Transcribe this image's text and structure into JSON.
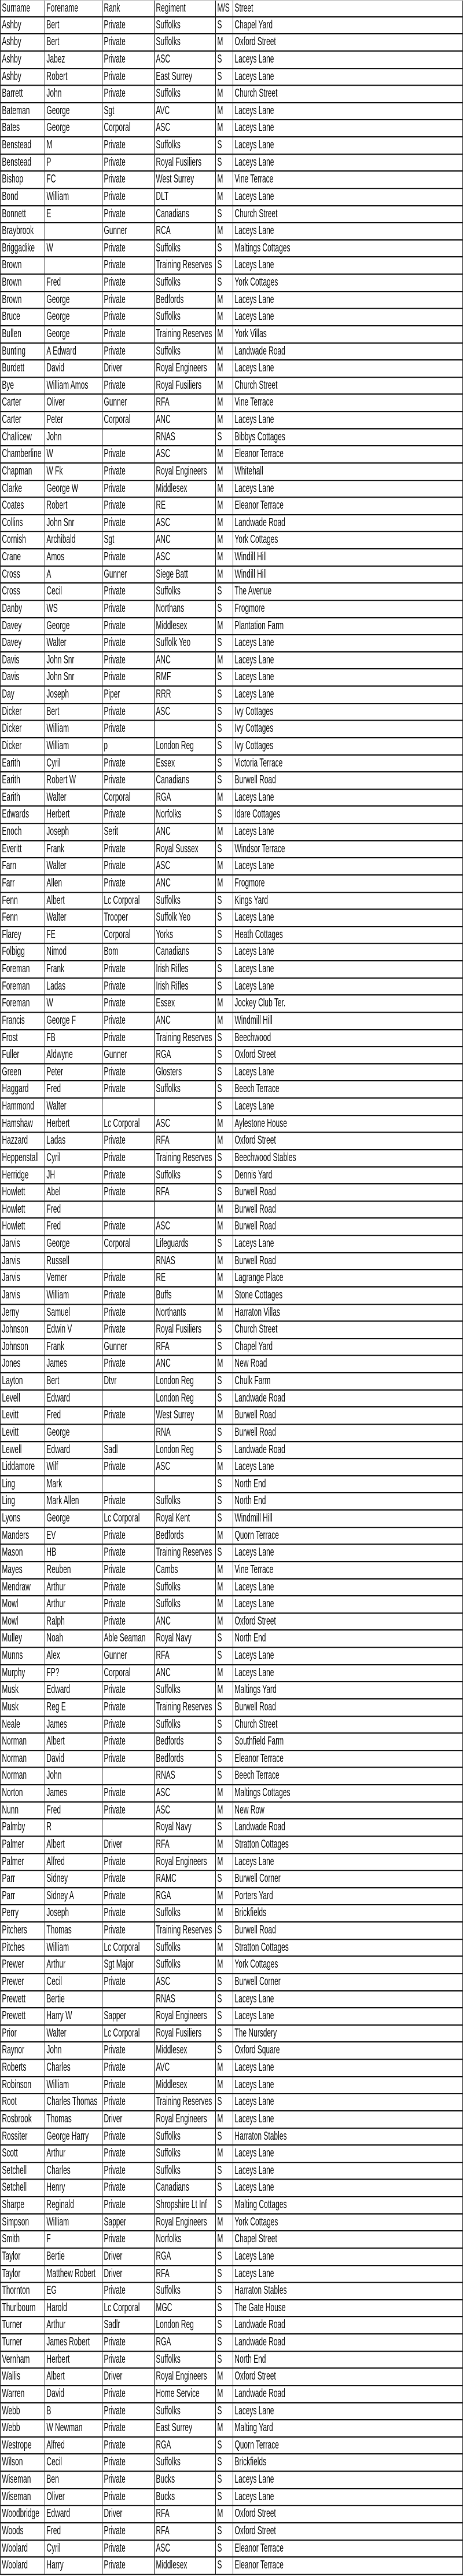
{
  "columns": [
    "Surname",
    "Forename",
    "Rank",
    "Regiment",
    "M/S",
    "Street"
  ],
  "rows": [
    [
      "Ashby",
      "Bert",
      "Private",
      "Suffolks",
      "S",
      "Chapel Yard"
    ],
    [
      "Ashby",
      "Bert",
      "Private",
      "Suffolks",
      "M",
      "Oxford Street"
    ],
    [
      "Ashby",
      "Jabez",
      "Private",
      "ASC",
      "S",
      "Laceys Lane"
    ],
    [
      "Ashby",
      "Robert",
      "Private",
      "East Surrey",
      "S",
      "Laceys Lane"
    ],
    [
      "Barrett",
      "John",
      "Private",
      "Suffolks",
      "M",
      "Church Street"
    ],
    [
      "Bateman",
      "George",
      "Sgt",
      "AVC",
      "M",
      "Laceys Lane"
    ],
    [
      "Bates",
      "George",
      "Corporal",
      "ASC",
      "M",
      "Laceys Lane"
    ],
    [
      "Benstead",
      "M",
      "Private",
      "Suffolks",
      "S",
      "Laceys Lane"
    ],
    [
      "Benstead",
      "P",
      "Private",
      "Royal Fusiliers",
      "S",
      "Laceys Lane"
    ],
    [
      "Bishop",
      "FC",
      "Private",
      "West Surrey",
      "M",
      "Vine Terrace"
    ],
    [
      "Bond",
      "William",
      "Private",
      "DLT",
      "M",
      "Laceys Lane"
    ],
    [
      "Bonnett",
      "E",
      "Private",
      "Canadians",
      "S",
      "Church Street"
    ],
    [
      "Braybrook",
      "",
      "Gunner",
      "RCA",
      "M",
      "Laceys Lane"
    ],
    [
      "Briggadike",
      "W",
      "Private",
      "Suffolks",
      "S",
      "Maltings Cottages"
    ],
    [
      "Brown",
      "",
      "Private",
      "Training Reserves",
      "S",
      "Laceys Lane"
    ],
    [
      "Brown",
      "Fred",
      "Private",
      "Suffolks",
      "S",
      "York Cottages"
    ],
    [
      "Brown",
      "George",
      "Private",
      "Bedfords",
      "M",
      "Laceys Lane"
    ],
    [
      "Bruce",
      "George",
      "Private",
      "Suffolks",
      "M",
      "Laceys Lane"
    ],
    [
      "Bullen",
      "George",
      "Private",
      "Training Reserves",
      "M",
      "York Villas"
    ],
    [
      "Bunting",
      "A Edward",
      "Private",
      "Suffolks",
      "M",
      "Landwade Road"
    ],
    [
      "Burdett",
      "David",
      "Driver",
      "Royal Engineers",
      "M",
      "Laceys Lane"
    ],
    [
      "Bye",
      "William Amos",
      "Private",
      "Royal Fusiliers",
      "M",
      "Church Street"
    ],
    [
      "Carter",
      "Oliver",
      "Gunner",
      "RFA",
      "M",
      "Vine Terrace"
    ],
    [
      "Carter",
      "Peter",
      "Corporal",
      "ANC",
      "M",
      "Laceys Lane"
    ],
    [
      "Challicew",
      "John",
      "",
      "RNAS",
      "S",
      "Bibbys Cottages"
    ],
    [
      "Chamberline",
      "W",
      "Private",
      "ASC",
      "M",
      "Eleanor Terrace"
    ],
    [
      "Chapman",
      "W Fk",
      "Private",
      "Royal Engineers",
      "M",
      "Whitehall"
    ],
    [
      "Clarke",
      "George W",
      "Private",
      "Middlesex",
      "M",
      "Laceys Lane"
    ],
    [
      "Coates",
      "Robert",
      "Private",
      "RE",
      "M",
      "Eleanor Terrace"
    ],
    [
      "Collins",
      "John Snr",
      "Private",
      "ASC",
      "M",
      "Landwade Road"
    ],
    [
      "Cornish",
      "Archibald",
      "Sgt",
      "ANC",
      "M",
      "York Cottages"
    ],
    [
      "Crane",
      "Amos",
      "Private",
      "ASC",
      "M",
      "Windill Hill"
    ],
    [
      "Cross",
      "A",
      "Gunner",
      "Siege Batt",
      "M",
      "Windill Hill"
    ],
    [
      "Cross",
      "Cecil",
      "Private",
      "Suffolks",
      "S",
      "The Avenue"
    ],
    [
      "Danby",
      "WS",
      "Private",
      "Northans",
      "S",
      "Frogmore"
    ],
    [
      "Davey",
      "George",
      "Private",
      "Middlesex",
      "M",
      "Plantation Farm"
    ],
    [
      "Davey",
      "Walter",
      "Private",
      "Suffolk Yeo",
      "S",
      "Laceys Lane"
    ],
    [
      "Davis",
      "John Snr",
      "Private",
      "ANC",
      "M",
      "Laceys Lane"
    ],
    [
      "Davis",
      "John Snr",
      "Private",
      "RMF",
      "S",
      "Laceys Lane"
    ],
    [
      "Day",
      "Joseph",
      "Piper",
      "RRR",
      "S",
      "Laceys Lane"
    ],
    [
      "Dicker",
      "Bert",
      "Private",
      "ASC",
      "S",
      "Ivy Cottages"
    ],
    [
      "Dicker",
      "William",
      "Private",
      "",
      "S",
      "Ivy Cottages"
    ],
    [
      "Dicker",
      "William",
      "p",
      "London Reg",
      "S",
      "Ivy Cottages"
    ],
    [
      "Earith",
      "Cyril",
      "Private",
      "Essex",
      "S",
      "Victoria Terrace"
    ],
    [
      "Earith",
      "Robert W",
      "Private",
      "Canadians",
      "S",
      "Burwell Road"
    ],
    [
      "Earith",
      "Walter",
      "Corporal",
      "RGA",
      "M",
      "Laceys Lane"
    ],
    [
      "Edwards",
      "Herbert",
      "Private",
      "Norfolks",
      "S",
      "Idare Cottages"
    ],
    [
      "Enoch",
      "Joseph",
      "Serit",
      "ANC",
      "M",
      "Laceys Lane"
    ],
    [
      "Everitt",
      "Frank",
      "Private",
      "Royal Sussex",
      "S",
      "Windsor Terrace"
    ],
    [
      "Farn",
      "Walter",
      "Private",
      "ASC",
      "M",
      "Laceys Lane"
    ],
    [
      "Farr",
      "Allen",
      "Private",
      "ANC",
      "M",
      "Frogmore"
    ],
    [
      "Fenn",
      "Albert",
      "Lc Corporal",
      "Suffolks",
      "S",
      "Kings Yard"
    ],
    [
      "Fenn",
      "Walter",
      "Trooper",
      "Suffolk Yeo",
      "S",
      "Laceys Lane"
    ],
    [
      "Flarey",
      "FE",
      "Corporal",
      "Yorks",
      "S",
      "Heath Cottages"
    ],
    [
      "Folbigg",
      "Nimod",
      "Bom",
      "Canadians",
      "S",
      "Laceys Lane"
    ],
    [
      "Foreman",
      "Frank",
      "Private",
      "Irish Rifles",
      "S",
      "Laceys Lane"
    ],
    [
      "Foreman",
      "Ladas",
      "Private",
      "Irish Rifles",
      "S",
      "Laceys Lane"
    ],
    [
      "Foreman",
      "W",
      "Private",
      "Essex",
      "M",
      "Jockey Club Ter."
    ],
    [
      "Francis",
      "George F",
      "Private",
      "ANC",
      "M",
      "Windmill Hill"
    ],
    [
      "Frost",
      "FB",
      "Private",
      "Training Reserves",
      "S",
      "Beechwood"
    ],
    [
      "Fuller",
      "Aldwyne",
      "Gunner",
      "RGA",
      "S",
      "Oxford Street"
    ],
    [
      "Green",
      "Peter",
      "Private",
      "Glosters",
      "S",
      "Laceys Lane"
    ],
    [
      "Haggard",
      "Fred",
      "Private",
      "Suffolks",
      "S",
      "Beech Terrace"
    ],
    [
      "Hammond",
      "Walter",
      "",
      "",
      "S",
      "Laceys Lane"
    ],
    [
      "Hamshaw",
      "Herbert",
      "Lc Corporal",
      "ASC",
      "M",
      "Aylestone House"
    ],
    [
      "Hazzard",
      "Ladas",
      "Private",
      "RFA",
      "M",
      "Oxford Street"
    ],
    [
      "Heppenstall",
      "Cyril",
      "Private",
      "Training Reserves",
      "S",
      "Beechwood Stables"
    ],
    [
      "Herridge",
      "JH",
      "Private",
      "Suffolks",
      "S",
      "Dennis Yard"
    ],
    [
      "Howlett",
      "Abel",
      "Private",
      "RFA",
      "S",
      "Burwell Road"
    ],
    [
      "Howlett",
      "Fred",
      "",
      "",
      "M",
      "Burwell Road"
    ],
    [
      "Howlett",
      "Fred",
      "Private",
      "ASC",
      "M",
      "Burwell Road"
    ],
    [
      "Jarvis",
      "George",
      "Corporal",
      "Lifeguards",
      "S",
      "Laceys Lane"
    ],
    [
      "Jarvis",
      "Russell",
      "",
      "RNAS",
      "M",
      "Burwell Road"
    ],
    [
      "Jarvis",
      "Verner",
      "Private",
      "RE",
      "M",
      "Lagrange Place"
    ],
    [
      "Jarvis",
      "William",
      "Private",
      "Buffs",
      "M",
      "Stone Cottages"
    ],
    [
      "Jerny",
      "Samuel",
      "Private",
      "Northants",
      "M",
      "Harraton Villas"
    ],
    [
      "Johnson",
      "Edwin V",
      "Private",
      "Royal Fusiliers",
      "S",
      "Church Street"
    ],
    [
      "Johnson",
      "Frank",
      "Gunner",
      "RFA",
      "S",
      "Chapel Yard"
    ],
    [
      "Jones",
      "James",
      "Private",
      "ANC",
      "M",
      "New Road"
    ],
    [
      "Layton",
      "Bert",
      "Dtvr",
      "London Reg",
      "S",
      "Chulk Farm"
    ],
    [
      "Levell",
      "Edward",
      "",
      "London Reg",
      "S",
      "Landwade Road"
    ],
    [
      "Levitt",
      "Fred",
      "Private",
      "West Surrey",
      "M",
      "Burwell Road"
    ],
    [
      "Levitt",
      "George",
      "",
      "RNA",
      "S",
      "Burwell Road"
    ],
    [
      "Lewell",
      "Edward",
      "Sadl",
      "London Reg",
      "S",
      "Landwade Road"
    ],
    [
      "Liddamore",
      "Wilf",
      "Private",
      "ASC",
      "M",
      "Laceys Lane"
    ],
    [
      "Ling",
      "Mark",
      "",
      "",
      "S",
      "North End"
    ],
    [
      "Ling",
      "Mark Allen",
      "Private",
      "Suffolks",
      "S",
      "North End"
    ],
    [
      "Lyons",
      "George",
      "Lc Corporal",
      "Royal Kent",
      "S",
      "Windmill Hill"
    ],
    [
      "Manders",
      "EV",
      "Private",
      "Bedfords",
      "M",
      "Quorn Terrace"
    ],
    [
      "Mason",
      "HB",
      "Private",
      "Training Reserves",
      "S",
      "Laceys Lane"
    ],
    [
      "Mayes",
      "Reuben",
      "Private",
      "Cambs",
      "M",
      "Vine Terrace"
    ],
    [
      "Mendraw",
      "Arthur",
      "Private",
      "Suffolks",
      "M",
      "Laceys Lane"
    ],
    [
      "Mowl",
      "Arthur",
      "Private",
      "Suffolks",
      "M",
      "Laceys Lane"
    ],
    [
      "Mowl",
      "Ralph",
      "Private",
      "ANC",
      "M",
      "Oxford Street"
    ],
    [
      "Mulley",
      "Noah",
      "Able Seaman",
      "Royal Navy",
      "S",
      "North End"
    ],
    [
      "Munns",
      "Alex",
      "Gunner",
      "RFA",
      "S",
      "Laceys Lane"
    ],
    [
      "Murphy",
      "FP?",
      "Corporal",
      "ANC",
      "M",
      "Laceys Lane"
    ],
    [
      "Musk",
      "Edward",
      "Private",
      "Suffolks",
      "M",
      "Maltings Yard"
    ],
    [
      "Musk",
      "Reg E",
      "Private",
      "Training Reserves",
      "S",
      "Burwell Road"
    ],
    [
      "Neale",
      "James",
      "Private",
      "Suffolks",
      "S",
      "Church Street"
    ],
    [
      "Norman",
      "Albert",
      "Private",
      "Bedfords",
      "S",
      "Southfield Farm"
    ],
    [
      "Norman",
      "David",
      "Private",
      "Bedfords",
      "S",
      "Eleanor Terrace"
    ],
    [
      "Norman",
      "John",
      "",
      "RNAS",
      "S",
      "Beech Terrace"
    ],
    [
      "Norton",
      "James",
      "Private",
      "ASC",
      "M",
      "Maltings Cottages"
    ],
    [
      "Nunn",
      "Fred",
      "Private",
      "ASC",
      "M",
      "New Row"
    ],
    [
      "Palmby",
      "R",
      "",
      "Royal Navy",
      "S",
      "Landwade Road"
    ],
    [
      "Palmer",
      "Albert",
      "Driver",
      "RFA",
      "M",
      "Stratton Cottages"
    ],
    [
      "Palmer",
      "Alfred",
      "Private",
      "Royal Engineers",
      "M",
      "Laceys Lane"
    ],
    [
      "Parr",
      "Sidney",
      "Private",
      "RAMC",
      "S",
      "Burwell Corner"
    ],
    [
      "Parr",
      "Sidney A",
      "Private",
      "RGA",
      "M",
      "Porters Yard"
    ],
    [
      "Perry",
      "Joseph",
      "Private",
      "Suffolks",
      "M",
      "Brickfields"
    ],
    [
      "Pitchers",
      "Thomas",
      "Private",
      "Training Reserves",
      "S",
      "Burwell Road"
    ],
    [
      "Pitches",
      "William",
      "Lc Corporal",
      "Suffolks",
      "M",
      "Stratton Cottages"
    ],
    [
      "Prewer",
      "Arthur",
      "Sgt Major",
      "Suffolks",
      "M",
      "York Cottages"
    ],
    [
      "Prewer",
      "Cecil",
      "Private",
      "ASC",
      "S",
      "Burwell Corner"
    ],
    [
      "Prewett",
      "Bertie",
      "",
      "RNAS",
      "S",
      "Laceys Lane"
    ],
    [
      "Prewett",
      "Harry W",
      "Sapper",
      "Royal Engineers",
      "S",
      "Laceys Lane"
    ],
    [
      "Prior",
      "Walter",
      "Lc Corporal",
      "Royal Fusiliers",
      "S",
      "The Nursdery"
    ],
    [
      "Raynor",
      "John",
      "Private",
      "Middlesex",
      "S",
      "Oxford Square"
    ],
    [
      "Roberts",
      "Charles",
      "Private",
      "AVC",
      "M",
      "Laceys Lane"
    ],
    [
      "Robinson",
      "William",
      "Private",
      "Middlesex",
      "M",
      "Laceys Lane"
    ],
    [
      "Root",
      "Charles Thomas",
      "Private",
      "Training Reserves",
      "S",
      "Laceys Lane"
    ],
    [
      "Rosbrook",
      "Thomas",
      "Driver",
      "Royal Engineers",
      "M",
      "Laceys Lane"
    ],
    [
      "Rossiter",
      "George Harry",
      "Private",
      "Suffolks",
      "S",
      "Harraton Stables"
    ],
    [
      "Scott",
      "Arthur",
      "Private",
      "Suffolks",
      "M",
      "Laceys Lane"
    ],
    [
      "Setchell",
      "Charles",
      "Private",
      "Suffolks",
      "S",
      "Laceys Lane"
    ],
    [
      "Setchell",
      "Henry",
      "Private",
      "Canadians",
      "S",
      "Laceys Lane"
    ],
    [
      "Sharpe",
      "Reginald",
      "Private",
      "Shropshire Lt Inf",
      "S",
      "Malting Cottages"
    ],
    [
      "Simpson",
      "William",
      "Sapper",
      "Royal Engineers",
      "M",
      "York Cottages"
    ],
    [
      "Smith",
      "F",
      "Private",
      "Norfolks",
      "M",
      "Chapel Street"
    ],
    [
      "Taylor",
      "Bertie",
      "Driver",
      "RGA",
      "S",
      "Laceys Lane"
    ],
    [
      "Taylor",
      "Matthew Robert",
      "Driver",
      "RFA",
      "S",
      "Laceys Lane"
    ],
    [
      "Thornton",
      "EG",
      "Private",
      "Suffolks",
      "S",
      "Harraton Stables"
    ],
    [
      "Thurlbourn",
      "Harold",
      "Lc Corporal",
      "MGC",
      "S",
      "The Gate House"
    ],
    [
      "Turner",
      "Arthur",
      "Sadlr",
      "London Reg",
      "S",
      "Landwade Road"
    ],
    [
      "Turner",
      "James Robert",
      "Private",
      "RGA",
      "S",
      "Landwade Road"
    ],
    [
      "Vernham",
      "Herbert",
      "Private",
      "Suffolks",
      "S",
      "North End"
    ],
    [
      "Wallis",
      "Albert",
      "Driver",
      "Royal Engineers",
      "M",
      "Oxford Street"
    ],
    [
      "Warren",
      "David",
      "Private",
      "Home Service",
      "M",
      "Landwade Road"
    ],
    [
      "Webb",
      "B",
      "Private",
      "Suffolks",
      "S",
      "Laceys Lane"
    ],
    [
      "Webb",
      "W Newman",
      "Private",
      "East Surrey",
      "M",
      "Malting Yard"
    ],
    [
      "Westrope",
      "Alfred",
      "Private",
      "RGA",
      "S",
      "Quorn Terrace"
    ],
    [
      "Wilson",
      "Cecil",
      "Private",
      "Suffolks",
      "S",
      "Brickfields"
    ],
    [
      "Wiseman",
      "Ben",
      "Private",
      "Bucks",
      "S",
      "Laceys Lane"
    ],
    [
      "Wiseman",
      "Oliver",
      "Private",
      "Bucks",
      "S",
      "Laceys Lane"
    ],
    [
      "Woodbridge",
      "Edward",
      "Driver",
      "RFA",
      "M",
      "Oxford Street"
    ],
    [
      "Woods",
      "Fred",
      "Private",
      "RFA",
      "S",
      "Oxford Street"
    ],
    [
      "Woolard",
      "Cyril",
      "Private",
      "ASC",
      "S",
      "Eleanor Terrace"
    ],
    [
      "Woolard",
      "Harry",
      "Private",
      "Middlesex",
      "S",
      "Eleanor Terrace"
    ]
  ]
}
